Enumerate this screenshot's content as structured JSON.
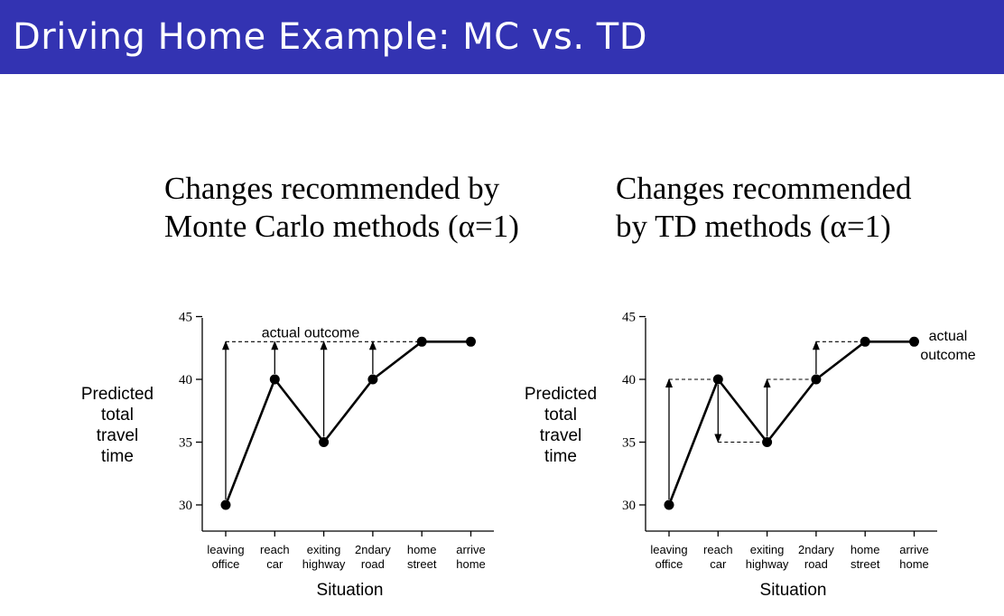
{
  "slide": {
    "title": "Driving Home Example: MC vs. TD"
  },
  "headings": {
    "mc": [
      "Changes recommended by",
      "Monte Carlo methods (α=1)"
    ],
    "td": [
      "Changes recommended",
      "by TD methods (α=1)"
    ]
  },
  "colors": {
    "title_bar": "#3333b2",
    "title_text": "#ffffff"
  },
  "chart_data": [
    {
      "type": "line",
      "title": "Changes recommended by Monte Carlo methods (α=1)",
      "ylabel": [
        "Predicted",
        "total",
        "travel",
        "time"
      ],
      "xlabel": "Situation",
      "categories": [
        [
          "leaving",
          "office"
        ],
        [
          "reach",
          "car"
        ],
        [
          "exiting",
          "highway"
        ],
        [
          "2ndary",
          "road"
        ],
        [
          "home",
          "street"
        ],
        [
          "arrive",
          "home"
        ]
      ],
      "values": [
        30,
        40,
        35,
        40,
        43,
        43
      ],
      "yticks": [
        30,
        35,
        40,
        45
      ],
      "ylim": [
        29,
        45
      ],
      "grid": false,
      "updates": [
        {
          "index": 0,
          "from": 30,
          "to": 43
        },
        {
          "index": 1,
          "from": 40,
          "to": 43
        },
        {
          "index": 2,
          "from": 35,
          "to": 43
        },
        {
          "index": 3,
          "from": 40,
          "to": 43
        }
      ],
      "annotation": {
        "text": "actual outcome",
        "value": 43
      }
    },
    {
      "type": "line",
      "title": "Changes recommended by TD methods (α=1)",
      "ylabel": [
        "Predicted",
        "total",
        "travel",
        "time"
      ],
      "xlabel": "Situation",
      "categories": [
        [
          "leaving",
          "office"
        ],
        [
          "reach",
          "car"
        ],
        [
          "exiting",
          "highway"
        ],
        [
          "2ndary",
          "road"
        ],
        [
          "home",
          "street"
        ],
        [
          "arrive",
          "home"
        ]
      ],
      "values": [
        30,
        40,
        35,
        40,
        43,
        43
      ],
      "yticks": [
        30,
        35,
        40,
        45
      ],
      "ylim": [
        29,
        45
      ],
      "grid": false,
      "updates": [
        {
          "index": 0,
          "from": 30,
          "to": 40
        },
        {
          "index": 1,
          "from": 40,
          "to": 35
        },
        {
          "index": 2,
          "from": 35,
          "to": 40
        },
        {
          "index": 3,
          "from": 40,
          "to": 43
        }
      ],
      "annotation": {
        "text": [
          "actual",
          "outcome"
        ],
        "value": 43
      }
    }
  ]
}
